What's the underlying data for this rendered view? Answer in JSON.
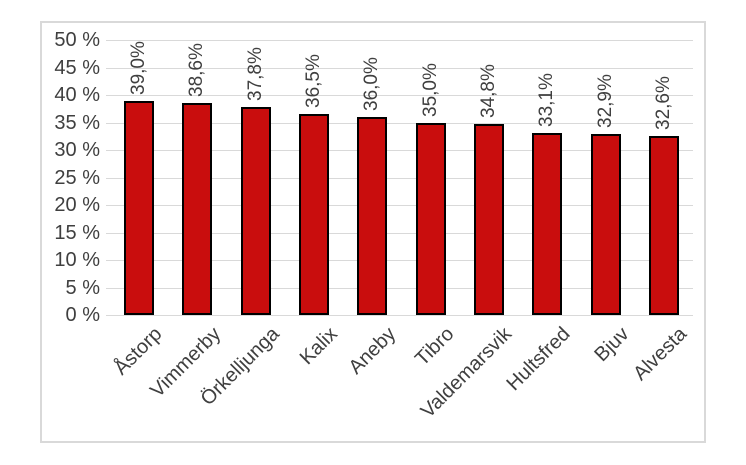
{
  "chart_data": {
    "type": "bar",
    "title": "",
    "xlabel": "",
    "ylabel": "",
    "categories": [
      "Åstorp",
      "Vimmerby",
      "Örkelljunga",
      "Kalix",
      "Aneby",
      "Tibro",
      "Valdemarsvik",
      "Hultsfred",
      "Bjuv",
      "Alvesta"
    ],
    "values": [
      39.0,
      38.6,
      37.8,
      36.5,
      36.0,
      35.0,
      34.8,
      33.1,
      32.9,
      32.6
    ],
    "data_labels": [
      "39,0%",
      "38,6%",
      "37,8%",
      "36,5%",
      "36,0%",
      "35,0%",
      "34,8%",
      "33,1%",
      "32,9%",
      "32,6%"
    ],
    "ylim": [
      0,
      50
    ],
    "ytick_step": 5,
    "ytick_labels": [
      "0 %",
      "5 %",
      "10 %",
      "15 %",
      "20 %",
      "25 %",
      "30 %",
      "35 %",
      "40 %",
      "45 %",
      "50 %"
    ],
    "grid": true,
    "legend": false,
    "colors": {
      "bar_fill": "#C90D0D",
      "bar_border": "#000000",
      "gridline": "#D9D9D9",
      "frame_border": "#D9D9D9",
      "text": "#3F3F3F",
      "background": "#FFFFFF"
    }
  }
}
